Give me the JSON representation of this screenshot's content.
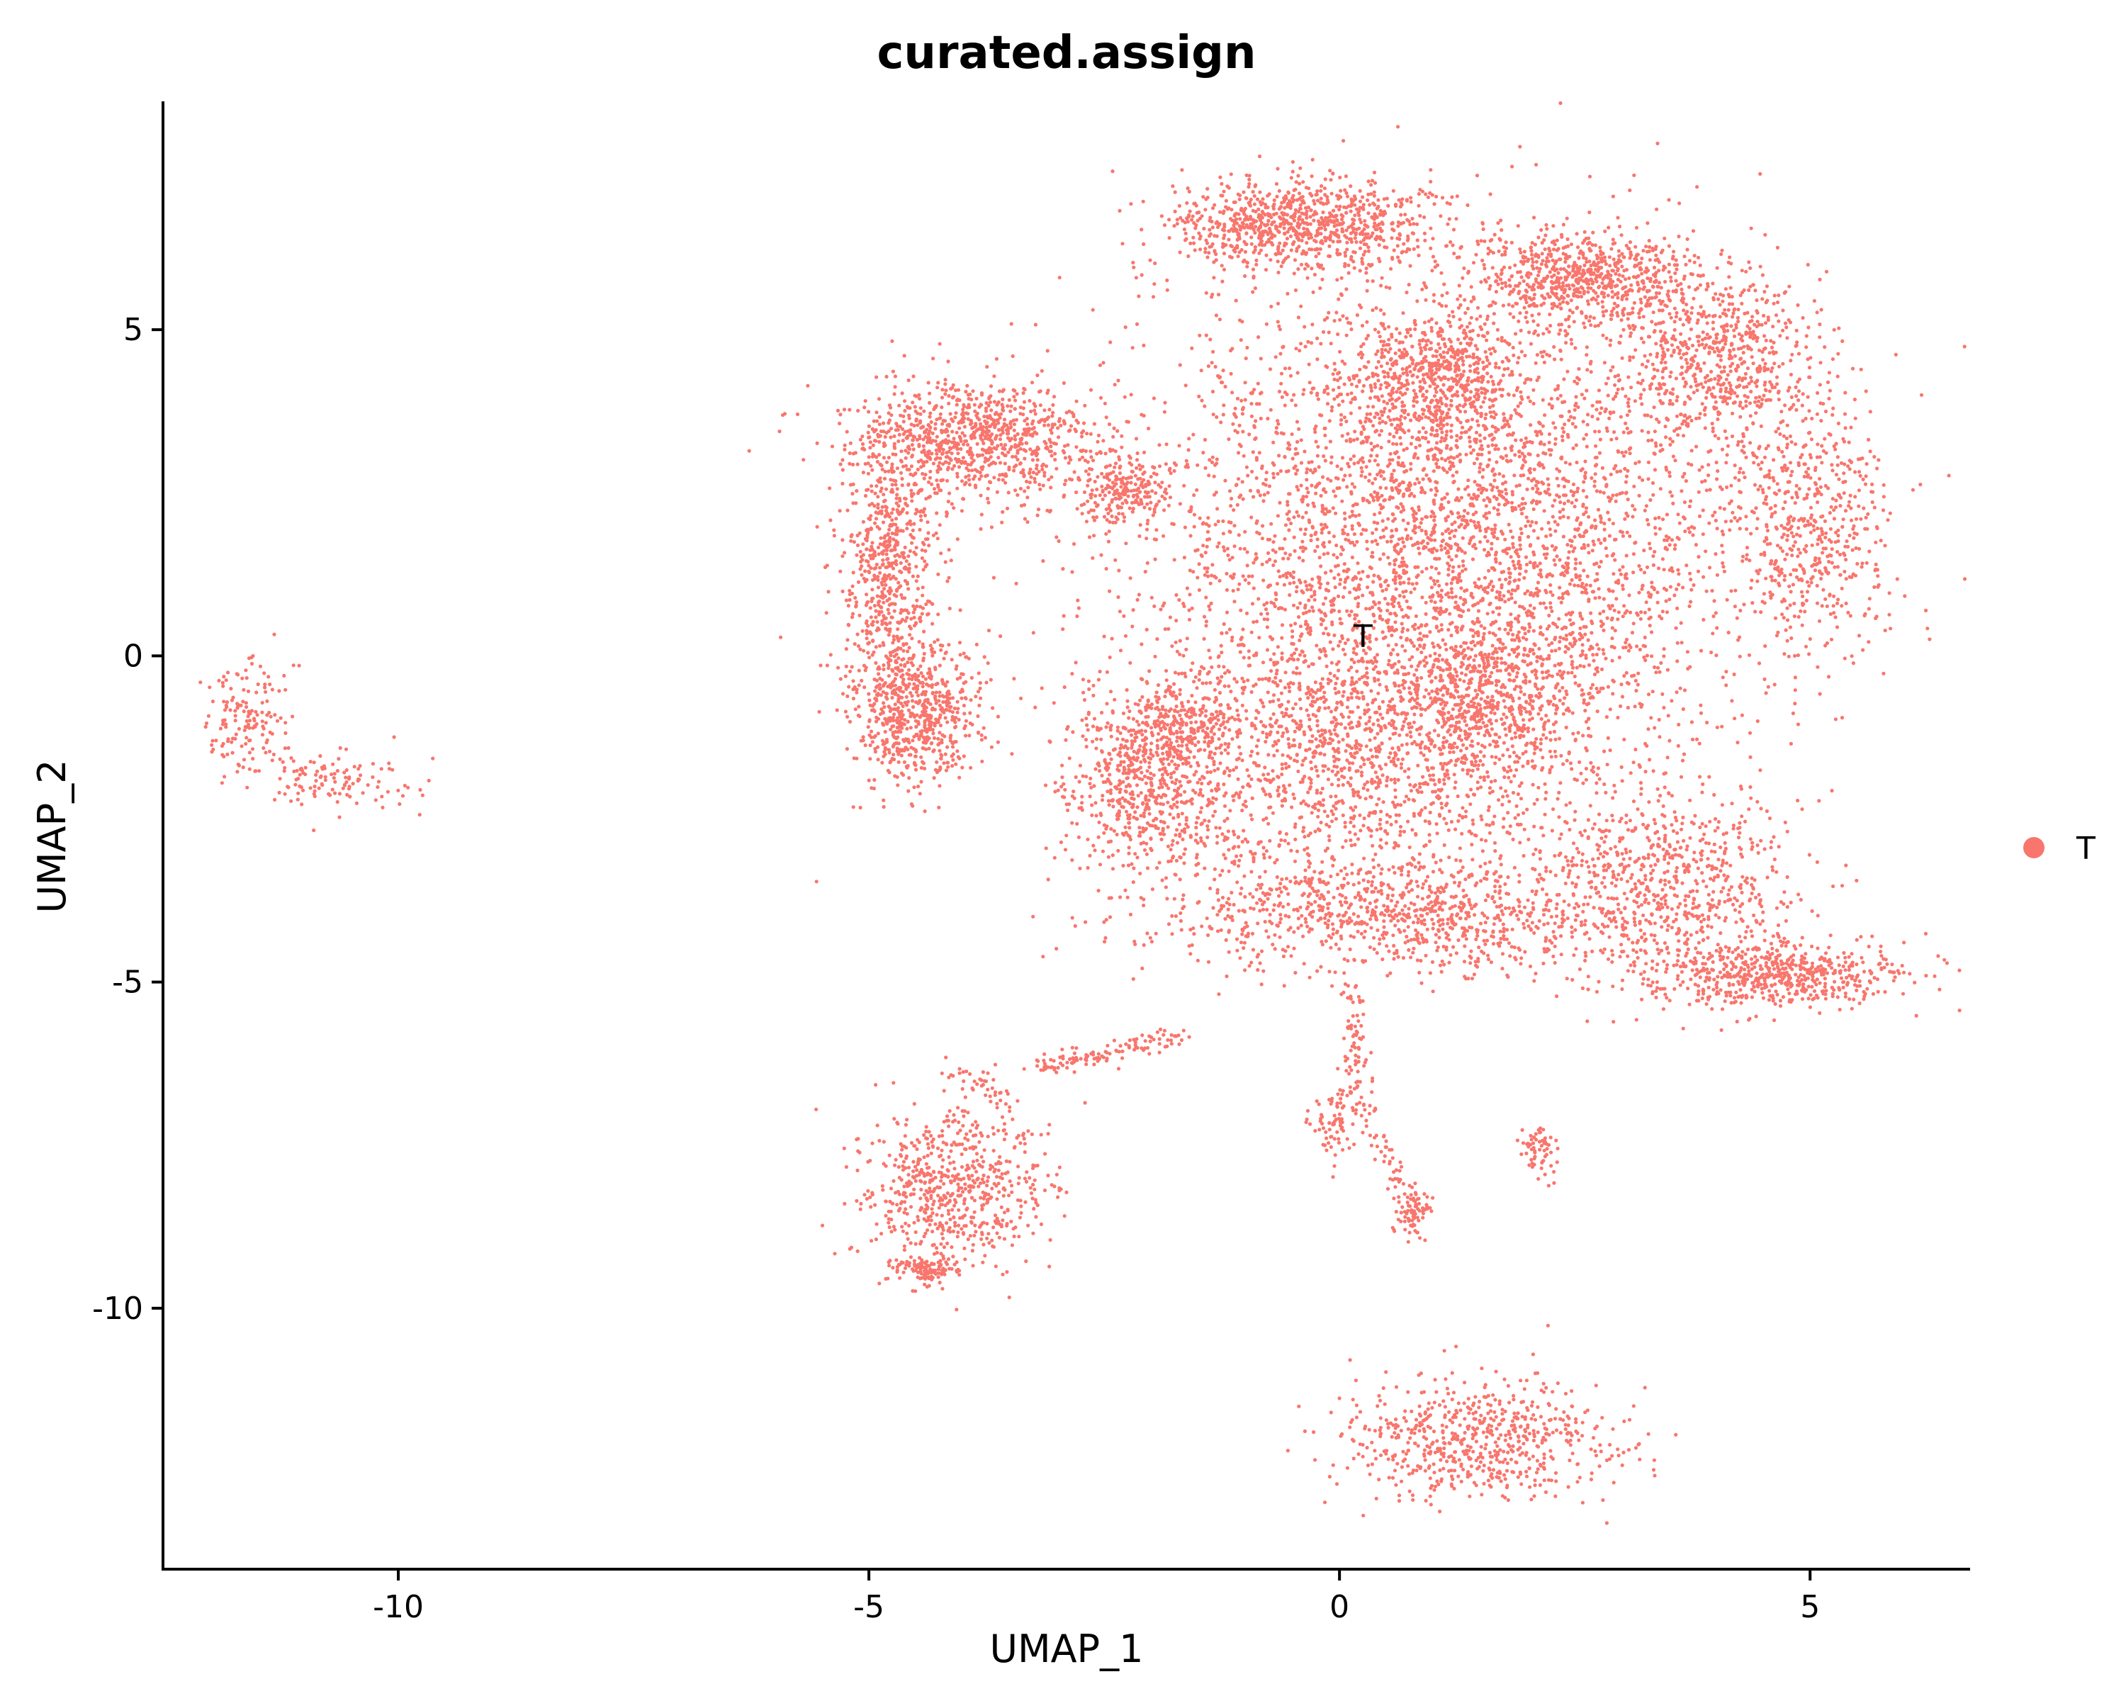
{
  "chart_data": {
    "type": "scatter",
    "title": "curated.assign",
    "xlabel": "UMAP_1",
    "ylabel": "UMAP_2",
    "xlim": [
      -12.5,
      6.7
    ],
    "ylim": [
      -14.0,
      8.5
    ],
    "xticks": [
      -10,
      -5,
      0,
      5
    ],
    "yticks": [
      5,
      0,
      -5,
      -10
    ],
    "xtick_labels": [
      "-10",
      "-5",
      "0",
      "5"
    ],
    "ytick_labels": [
      "5",
      "0",
      "-5",
      "-10"
    ],
    "grid": false,
    "legend_position": "right",
    "series": [
      {
        "name": "T",
        "color": "#F8766D",
        "clusters": [
          {
            "cx": 1.2,
            "cy": 2.0,
            "sx": 2.3,
            "sy": 2.6,
            "n": 4200
          },
          {
            "cx": -0.4,
            "cy": 6.6,
            "sx": 0.9,
            "sy": 0.45,
            "n": 900
          },
          {
            "cx": 2.6,
            "cy": 5.8,
            "sx": 0.8,
            "sy": 0.45,
            "n": 700
          },
          {
            "cx": 4.0,
            "cy": 4.6,
            "sx": 0.7,
            "sy": 0.8,
            "n": 600
          },
          {
            "cx": 1.0,
            "cy": 4.3,
            "sx": 0.55,
            "sy": 0.6,
            "n": 500
          },
          {
            "cx": 5.0,
            "cy": 2.0,
            "sx": 0.5,
            "sy": 1.2,
            "n": 500
          },
          {
            "cx": -3.9,
            "cy": 3.3,
            "sx": 0.9,
            "sy": 0.6,
            "n": 900
          },
          {
            "cx": -4.8,
            "cy": 1.2,
            "sx": 0.35,
            "sy": 1.6,
            "n": 700
          },
          {
            "cx": -4.5,
            "cy": -0.9,
            "sx": 0.45,
            "sy": 0.7,
            "n": 600
          },
          {
            "cx": -2.3,
            "cy": 2.5,
            "sx": 0.35,
            "sy": 0.3,
            "n": 200
          },
          {
            "cx": -2.0,
            "cy": -2.0,
            "sx": 0.6,
            "sy": 1.0,
            "n": 700
          },
          {
            "cx": 0.3,
            "cy": -1.6,
            "sx": 1.5,
            "sy": 1.5,
            "n": 1400
          },
          {
            "cx": 1.6,
            "cy": -0.5,
            "sx": 0.7,
            "sy": 0.8,
            "n": 500
          },
          {
            "cx": 0.6,
            "cy": -4.0,
            "sx": 1.7,
            "sy": 0.55,
            "n": 900
          },
          {
            "cx": 3.4,
            "cy": -3.5,
            "sx": 0.9,
            "sy": 1.0,
            "n": 700
          },
          {
            "cx": 4.6,
            "cy": -4.9,
            "sx": 0.9,
            "sy": 0.35,
            "n": 600
          },
          {
            "cx": -1.6,
            "cy": -1.0,
            "sx": 0.4,
            "sy": 0.35,
            "n": 200
          },
          {
            "cx": -4.1,
            "cy": -8.2,
            "sx": 0.65,
            "sy": 0.8,
            "n": 650
          },
          {
            "cx": -4.4,
            "cy": -9.4,
            "sx": 0.25,
            "sy": 0.15,
            "n": 120
          },
          {
            "cx": 1.5,
            "cy": -12.0,
            "sx": 0.95,
            "sy": 0.6,
            "n": 650
          },
          {
            "cx": -11.6,
            "cy": -1.0,
            "sx": 0.3,
            "sy": 0.55,
            "n": 150
          },
          {
            "cx": -10.7,
            "cy": -1.9,
            "sx": 0.55,
            "sy": 0.3,
            "n": 120
          },
          {
            "cx": 0.8,
            "cy": -8.5,
            "sx": 0.12,
            "sy": 0.25,
            "n": 60
          },
          {
            "cx": -0.1,
            "cy": -7.2,
            "sx": 0.15,
            "sy": 0.35,
            "n": 70
          },
          {
            "cx": 2.1,
            "cy": -7.6,
            "sx": 0.15,
            "sy": 0.25,
            "n": 60
          }
        ],
        "trails": [
          {
            "x0": -3.2,
            "y0": -6.3,
            "x1": -1.6,
            "y1": -5.8,
            "n": 120
          },
          {
            "x0": 0.15,
            "y0": -5.0,
            "x1": 0.15,
            "y1": -7.0,
            "n": 80
          },
          {
            "x0": 0.2,
            "y0": -6.5,
            "x1": 0.8,
            "y1": -9.0,
            "n": 70
          },
          {
            "x0": -3.5,
            "y0": -6.8,
            "x1": -4.2,
            "y1": -6.3,
            "n": 40
          }
        ],
        "label": "T",
        "label_position": [
          0.25,
          0.3
        ]
      }
    ],
    "legend": [
      {
        "label": "T",
        "color": "#F8766D"
      }
    ]
  }
}
